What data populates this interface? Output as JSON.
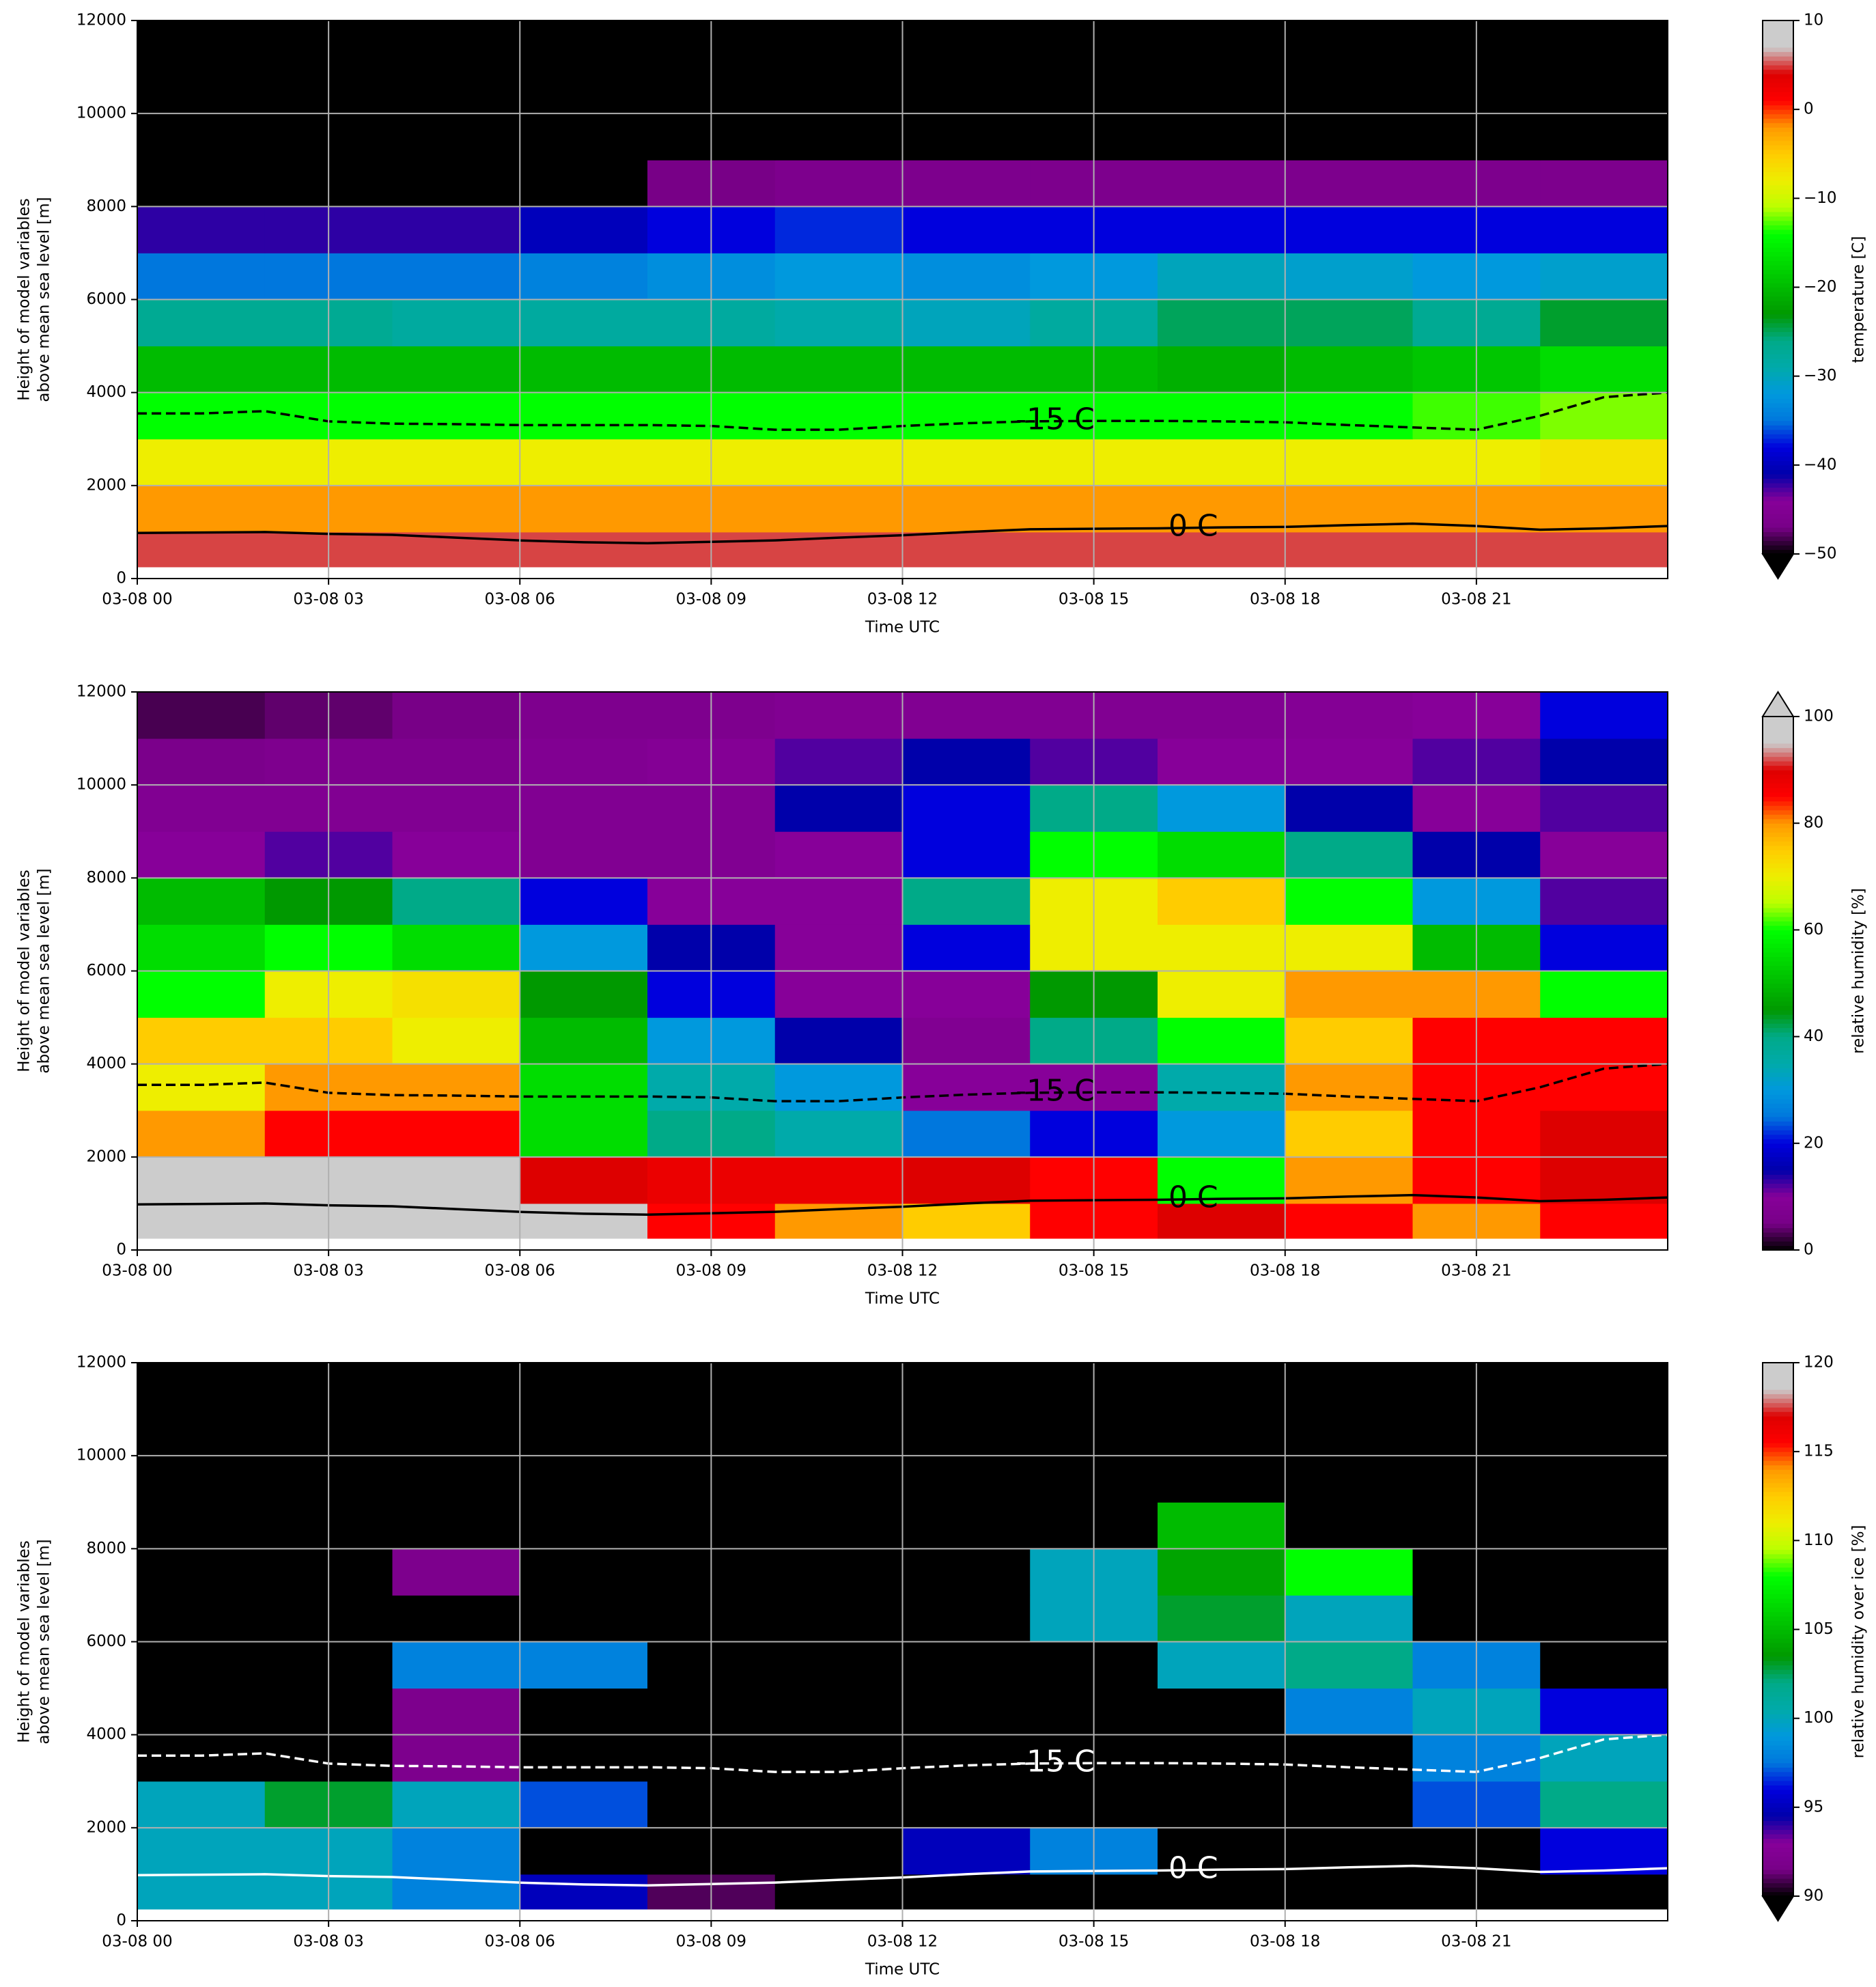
{
  "chart_data": [
    {
      "type": "heatmap",
      "xlabel": "Time UTC",
      "ylabel": [
        "Height of model variables",
        "above mean sea level [m]"
      ],
      "xlim": [
        0,
        24
      ],
      "xticks": [
        {
          "value": 0,
          "label": "03-08 00"
        },
        {
          "value": 3,
          "label": "03-08 03"
        },
        {
          "value": 6,
          "label": "03-08 06"
        },
        {
          "value": 9,
          "label": "03-08 09"
        },
        {
          "value": 12,
          "label": "03-08 12"
        },
        {
          "value": 15,
          "label": "03-08 15"
        },
        {
          "value": 18,
          "label": "03-08 18"
        },
        {
          "value": 21,
          "label": "03-08 21"
        }
      ],
      "ylim": [
        0,
        12000
      ],
      "yticks": [
        0,
        2000,
        4000,
        6000,
        8000,
        10000,
        12000
      ],
      "grid": true,
      "x_edges": [
        0,
        2,
        4,
        6,
        8,
        10,
        12,
        14,
        16,
        18,
        20,
        22,
        24
      ],
      "y_edges": [
        250,
        1000,
        2000,
        3000,
        4000,
        5000,
        6000,
        7000,
        8000,
        9000,
        10000,
        11000,
        12000
      ],
      "z": [
        [
          5,
          5,
          5,
          5,
          5,
          5,
          5,
          5,
          5,
          5,
          5,
          5
        ],
        [
          -2,
          -2,
          -2,
          -2,
          -2,
          -2,
          -2,
          -2,
          -2,
          -2,
          -2,
          -2
        ],
        [
          -8,
          -8,
          -8,
          -8,
          -8,
          -8,
          -8,
          -8,
          -8,
          -8,
          -8,
          -7
        ],
        [
          -14,
          -14,
          -14,
          -14,
          -14,
          -14,
          -14,
          -14,
          -14,
          -14,
          -13,
          -12
        ],
        [
          -20,
          -20,
          -20,
          -20,
          -20,
          -20,
          -20,
          -20,
          -21,
          -20,
          -19,
          -17
        ],
        [
          -27,
          -27,
          -28,
          -28,
          -28,
          -29,
          -30,
          -28,
          -25,
          -25,
          -27,
          -24
        ],
        [
          -35,
          -35,
          -35,
          -34,
          -33,
          -32,
          -33,
          -32,
          -30,
          -31,
          -32,
          -31
        ],
        [
          -42,
          -42,
          -42,
          -40,
          -38,
          -37,
          -38,
          -38,
          -38,
          -38,
          -38,
          -38
        ],
        [
          -52,
          -52,
          -52,
          -50,
          -47,
          -46,
          -46,
          -46,
          -46,
          -46,
          -46,
          -46
        ],
        [
          -56,
          -56,
          -56,
          -56,
          -55,
          -55,
          -55,
          -55,
          -55,
          -55,
          -55,
          -55
        ],
        [
          -58,
          -58,
          -58,
          -58,
          -58,
          -58,
          -58,
          -58,
          -58,
          -58,
          -58,
          -58
        ],
        [
          -60,
          -60,
          -60,
          -60,
          -60,
          -60,
          -60,
          -60,
          -60,
          -60,
          -60,
          -60
        ]
      ],
      "contours": [
        {
          "label": "-15 C",
          "color": "#000000",
          "dashed": true,
          "x": [
            0,
            1,
            2,
            3,
            4,
            5,
            6,
            7,
            8,
            9,
            10,
            11,
            12,
            13,
            14,
            15,
            16,
            17,
            18,
            19,
            20,
            21,
            22,
            23,
            24
          ],
          "y": [
            3550,
            3550,
            3600,
            3380,
            3330,
            3320,
            3300,
            3300,
            3300,
            3280,
            3200,
            3200,
            3280,
            3340,
            3380,
            3390,
            3390,
            3380,
            3360,
            3300,
            3250,
            3200,
            3500,
            3900,
            4000
          ]
        },
        {
          "label": "0 C",
          "color": "#000000",
          "dashed": false,
          "x": [
            0,
            1,
            2,
            3,
            4,
            5,
            6,
            7,
            8,
            9,
            10,
            11,
            12,
            13,
            14,
            15,
            16,
            17,
            18,
            19,
            20,
            21,
            22,
            23,
            24
          ],
          "y": [
            980,
            990,
            1000,
            960,
            940,
            880,
            820,
            780,
            760,
            790,
            820,
            880,
            930,
            1000,
            1060,
            1070,
            1080,
            1100,
            1110,
            1150,
            1180,
            1130,
            1050,
            1080,
            1130
          ]
        }
      ],
      "colorbar": {
        "label": "temperature [C]",
        "lim": [
          -50,
          10
        ],
        "extend": "min",
        "ticks": [
          {
            "value": -50,
            "label": "−50"
          },
          {
            "value": -40,
            "label": "−40"
          },
          {
            "value": -30,
            "label": "−30"
          },
          {
            "value": -20,
            "label": "−20"
          },
          {
            "value": -10,
            "label": "−10"
          },
          0,
          10
        ],
        "colormap": [
          "#000000",
          "#780087",
          "#870099",
          "#0000aa",
          "#0000dd",
          "#0077dd",
          "#0099dd",
          "#00aaaa",
          "#00aa88",
          "#009900",
          "#00bb00",
          "#00dd00",
          "#00ff00",
          "#bbff00",
          "#eeee00",
          "#ffcc00",
          "#ff9900",
          "#ff0000",
          "#dd0000",
          "#cccccc",
          "#cccccc"
        ]
      }
    },
    {
      "type": "heatmap",
      "xlabel": "Time UTC",
      "ylabel": [
        "Height of model variables",
        "above mean sea level [m]"
      ],
      "xlim": [
        0,
        24
      ],
      "xticks": [
        {
          "value": 0,
          "label": "03-08 00"
        },
        {
          "value": 3,
          "label": "03-08 03"
        },
        {
          "value": 6,
          "label": "03-08 06"
        },
        {
          "value": 9,
          "label": "03-08 09"
        },
        {
          "value": 12,
          "label": "03-08 12"
        },
        {
          "value": 15,
          "label": "03-08 15"
        },
        {
          "value": 18,
          "label": "03-08 18"
        },
        {
          "value": 21,
          "label": "03-08 21"
        }
      ],
      "ylim": [
        0,
        12000
      ],
      "yticks": [
        0,
        2000,
        4000,
        6000,
        8000,
        10000,
        12000
      ],
      "grid": true,
      "x_edges": [
        0,
        2,
        4,
        6,
        8,
        10,
        12,
        14,
        16,
        18,
        20,
        22,
        24
      ],
      "y_edges": [
        250,
        1000,
        2000,
        3000,
        4000,
        5000,
        6000,
        7000,
        8000,
        9000,
        10000,
        11000,
        12000
      ],
      "z": [
        [
          98,
          100,
          100,
          95,
          85,
          80,
          75,
          85,
          90,
          85,
          80,
          85
        ],
        [
          95,
          100,
          98,
          90,
          88,
          88,
          90,
          85,
          60,
          80,
          85,
          90
        ],
        [
          80,
          85,
          85,
          55,
          40,
          35,
          25,
          20,
          30,
          75,
          85,
          90
        ],
        [
          70,
          80,
          80,
          55,
          35,
          30,
          10,
          10,
          35,
          80,
          85,
          85
        ],
        [
          75,
          75,
          70,
          50,
          30,
          15,
          8,
          40,
          60,
          75,
          85,
          85
        ],
        [
          60,
          70,
          72,
          45,
          20,
          10,
          10,
          45,
          70,
          80,
          80,
          60
        ],
        [
          55,
          60,
          55,
          30,
          15,
          10,
          20,
          70,
          70,
          70,
          50,
          20
        ],
        [
          50,
          45,
          40,
          20,
          10,
          10,
          40,
          70,
          75,
          60,
          30,
          12
        ],
        [
          10,
          12,
          10,
          8,
          8,
          10,
          20,
          60,
          55,
          40,
          15,
          10
        ],
        [
          8,
          8,
          8,
          8,
          8,
          15,
          20,
          40,
          30,
          15,
          10,
          12
        ],
        [
          6,
          7,
          7,
          8,
          9,
          12,
          15,
          12,
          10,
          10,
          12,
          15
        ],
        [
          3,
          4,
          5,
          7,
          7,
          8,
          8,
          8,
          8,
          9,
          10,
          20
        ]
      ],
      "contours": [
        {
          "label": "-15 C",
          "color": "#000000",
          "dashed": true,
          "x": [
            0,
            1,
            2,
            3,
            4,
            5,
            6,
            7,
            8,
            9,
            10,
            11,
            12,
            13,
            14,
            15,
            16,
            17,
            18,
            19,
            20,
            21,
            22,
            23,
            24
          ],
          "y": [
            3550,
            3550,
            3600,
            3380,
            3330,
            3320,
            3300,
            3300,
            3300,
            3280,
            3200,
            3200,
            3280,
            3340,
            3380,
            3390,
            3390,
            3380,
            3360,
            3300,
            3250,
            3200,
            3500,
            3900,
            4000
          ]
        },
        {
          "label": "0 C",
          "color": "#000000",
          "dashed": false,
          "x": [
            0,
            1,
            2,
            3,
            4,
            5,
            6,
            7,
            8,
            9,
            10,
            11,
            12,
            13,
            14,
            15,
            16,
            17,
            18,
            19,
            20,
            21,
            22,
            23,
            24
          ],
          "y": [
            980,
            990,
            1000,
            960,
            940,
            880,
            820,
            780,
            760,
            790,
            820,
            880,
            930,
            1000,
            1060,
            1070,
            1080,
            1100,
            1110,
            1150,
            1180,
            1130,
            1050,
            1080,
            1130
          ]
        }
      ],
      "colorbar": {
        "label": "relative humidity [%]",
        "lim": [
          0,
          100
        ],
        "extend": "max",
        "ticks": [
          0,
          20,
          40,
          60,
          80,
          100
        ],
        "colormap": [
          "#000000",
          "#780087",
          "#870099",
          "#0000aa",
          "#0000dd",
          "#0077dd",
          "#0099dd",
          "#00aaaa",
          "#00aa88",
          "#009900",
          "#00bb00",
          "#00dd00",
          "#00ff00",
          "#bbff00",
          "#eeee00",
          "#ffcc00",
          "#ff9900",
          "#ff0000",
          "#dd0000",
          "#cccccc",
          "#cccccc"
        ]
      }
    },
    {
      "type": "heatmap",
      "xlabel": "Time UTC",
      "ylabel": [
        "Height of model variables",
        "above mean sea level [m]"
      ],
      "xlim": [
        0,
        24
      ],
      "xticks": [
        {
          "value": 0,
          "label": "03-08 00"
        },
        {
          "value": 3,
          "label": "03-08 03"
        },
        {
          "value": 6,
          "label": "03-08 06"
        },
        {
          "value": 9,
          "label": "03-08 09"
        },
        {
          "value": 12,
          "label": "03-08 12"
        },
        {
          "value": 15,
          "label": "03-08 15"
        },
        {
          "value": 18,
          "label": "03-08 18"
        },
        {
          "value": 21,
          "label": "03-08 21"
        }
      ],
      "ylim": [
        0,
        12000
      ],
      "yticks": [
        0,
        2000,
        4000,
        6000,
        8000,
        10000,
        12000
      ],
      "grid": true,
      "x_edges": [
        0,
        2,
        4,
        6,
        8,
        10,
        12,
        14,
        16,
        18,
        20,
        22,
        24
      ],
      "y_edges": [
        250,
        1000,
        2000,
        3000,
        4000,
        5000,
        6000,
        7000,
        8000,
        9000,
        10000,
        11000,
        12000
      ],
      "z": [
        [
          100,
          100,
          98,
          95,
          91,
          85,
          85,
          85,
          85,
          80,
          80,
          80
        ],
        [
          100,
          100,
          98,
          80,
          80,
          85,
          95,
          98,
          85,
          85,
          85,
          96
        ],
        [
          100,
          103,
          100,
          97,
          80,
          80,
          80,
          80,
          80,
          85,
          97,
          102
        ],
        [
          80,
          80,
          92,
          80,
          80,
          80,
          80,
          80,
          80,
          80,
          98,
          100
        ],
        [
          80,
          80,
          92,
          80,
          80,
          80,
          80,
          80,
          80,
          98,
          100,
          96
        ],
        [
          80,
          80,
          98,
          98,
          80,
          80,
          80,
          80,
          100,
          102,
          98,
          80
        ],
        [
          80,
          80,
          80,
          80,
          80,
          80,
          80,
          100,
          103,
          100,
          80,
          80
        ],
        [
          80,
          80,
          92,
          80,
          80,
          80,
          80,
          100,
          104,
          108,
          80,
          80
        ],
        [
          80,
          80,
          80,
          80,
          80,
          80,
          80,
          80,
          105,
          80,
          80,
          80
        ],
        [
          80,
          80,
          80,
          80,
          80,
          80,
          80,
          80,
          80,
          80,
          80,
          80
        ],
        [
          80,
          80,
          80,
          80,
          80,
          80,
          80,
          80,
          80,
          80,
          80,
          80
        ],
        [
          80,
          80,
          80,
          80,
          80,
          80,
          80,
          80,
          80,
          80,
          80,
          80
        ]
      ],
      "contours": [
        {
          "label": "-15 C",
          "color": "#ffffff",
          "dashed": true,
          "x": [
            0,
            1,
            2,
            3,
            4,
            5,
            6,
            7,
            8,
            9,
            10,
            11,
            12,
            13,
            14,
            15,
            16,
            17,
            18,
            19,
            20,
            21,
            22,
            23,
            24
          ],
          "y": [
            3550,
            3550,
            3600,
            3380,
            3330,
            3320,
            3300,
            3300,
            3300,
            3280,
            3200,
            3200,
            3280,
            3340,
            3380,
            3390,
            3390,
            3380,
            3360,
            3300,
            3250,
            3200,
            3500,
            3900,
            4000
          ]
        },
        {
          "label": "0 C",
          "color": "#ffffff",
          "dashed": false,
          "x": [
            0,
            1,
            2,
            3,
            4,
            5,
            6,
            7,
            8,
            9,
            10,
            11,
            12,
            13,
            14,
            15,
            16,
            17,
            18,
            19,
            20,
            21,
            22,
            23,
            24
          ],
          "y": [
            980,
            990,
            1000,
            960,
            940,
            880,
            820,
            780,
            760,
            790,
            820,
            880,
            930,
            1000,
            1060,
            1070,
            1080,
            1100,
            1110,
            1150,
            1180,
            1130,
            1050,
            1080,
            1130
          ]
        }
      ],
      "colorbar": {
        "label": "relative humidity over ice [%]",
        "lim": [
          90,
          120
        ],
        "extend": "min",
        "ticks": [
          90,
          95,
          100,
          105,
          110,
          115,
          120
        ],
        "colormap": [
          "#000000",
          "#780087",
          "#870099",
          "#0000aa",
          "#0000dd",
          "#0077dd",
          "#0099dd",
          "#00aaaa",
          "#00aa88",
          "#009900",
          "#00bb00",
          "#00dd00",
          "#00ff00",
          "#bbff00",
          "#eeee00",
          "#ffcc00",
          "#ff9900",
          "#ff0000",
          "#dd0000",
          "#cccccc",
          "#cccccc"
        ]
      }
    }
  ]
}
